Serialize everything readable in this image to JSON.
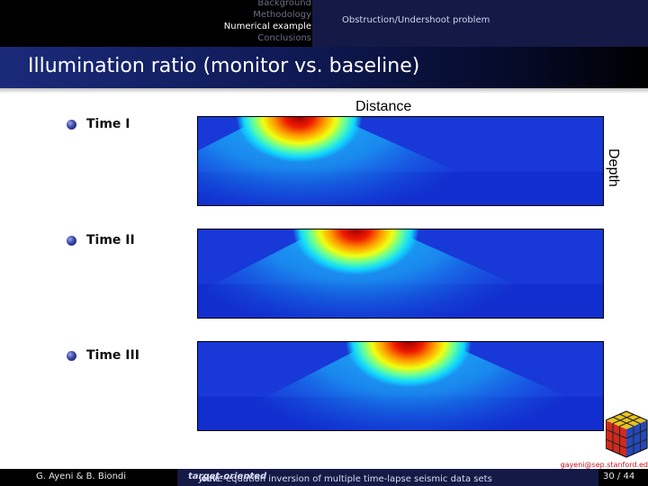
{
  "nav": {
    "sections": [
      "Background",
      "Methodology",
      "Numerical example",
      "Conclusions"
    ],
    "active_index": 2,
    "subsection": "Obstruction/Undershoot problem"
  },
  "title": "Illumination ratio (monitor vs. baseline)",
  "bullets": [
    "Time I",
    "Time II",
    "Time III"
  ],
  "figure": {
    "x_label": "Distance",
    "y_label": "Depth",
    "colormap": "jet",
    "panels": [
      {
        "name": "Time I",
        "hotspot_x_fraction": 0.25
      },
      {
        "name": "Time II",
        "hotspot_x_fraction": 0.39
      },
      {
        "name": "Time III",
        "hotspot_x_fraction": 0.52
      }
    ]
  },
  "email": "gayeni@sep.stanford.ed",
  "footer": {
    "authors": "G. Ayeni & B. Biondi",
    "talk_pre": "Joint ",
    "talk_em": "target-oriented",
    "talk_post": " wave-equation inversion of multiple time-lapse seismic data sets",
    "page": "30 / 44"
  },
  "colors": {
    "nav_bg": "#000000",
    "subsection_bg": "#141a45",
    "title_gradient_start": "#1a2a7a",
    "email": "#c8141e"
  }
}
